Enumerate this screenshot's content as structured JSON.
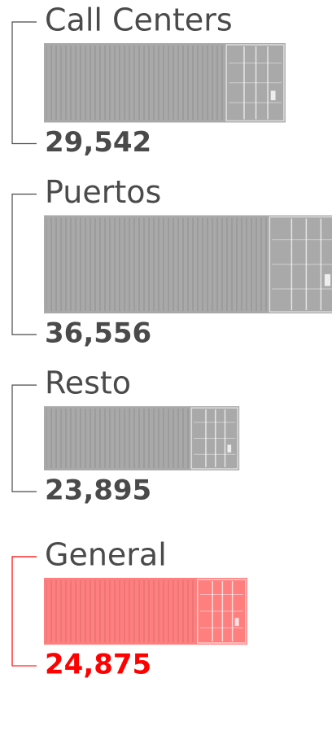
{
  "chart_data": {
    "type": "container",
    "categories": [
      "Call Centers",
      "Puertos",
      "Resto",
      "General"
    ],
    "values": [
      29542,
      36556,
      23895,
      24875
    ],
    "value_labels": [
      "29,542",
      "36,556",
      "23,895",
      "24,875"
    ],
    "colors": [
      "#a9a9a9",
      "#a9a9a9",
      "#a9a9a9",
      "#ff7f7f"
    ],
    "label_colors": [
      "#4a4a4a",
      "#4a4a4a",
      "#4a4a4a",
      "#ff0000"
    ]
  }
}
